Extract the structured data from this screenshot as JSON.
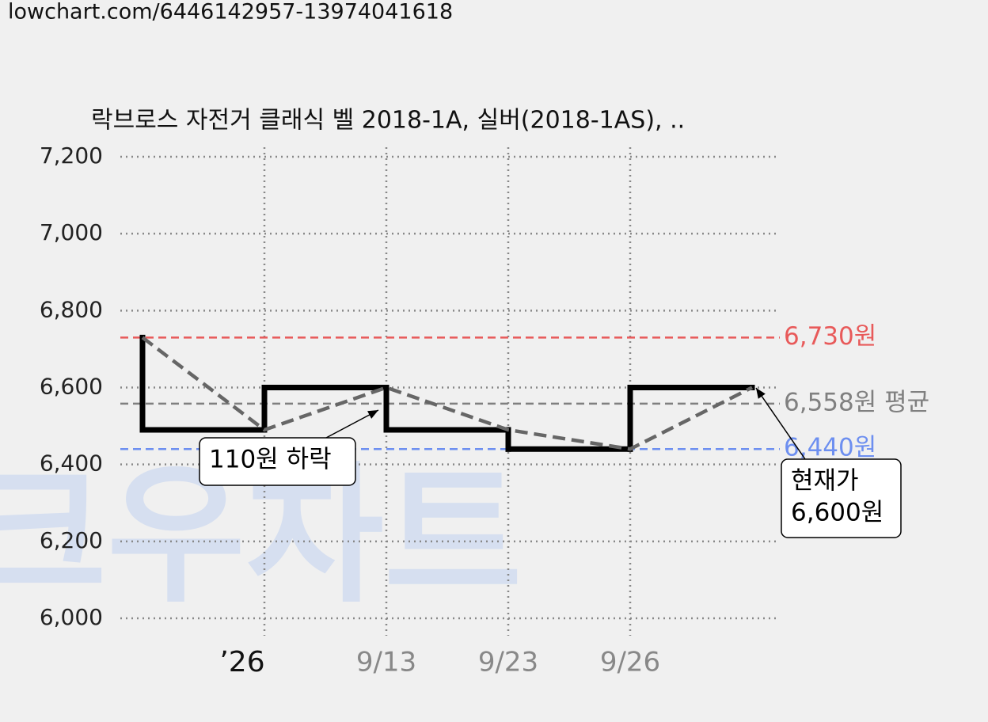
{
  "url": "lowchart.com/6446142957-13974041618",
  "watermark": "크우차트",
  "chart_data": {
    "type": "line",
    "title": "락브로스 자전거 클래식 벨 2018-1A, 실버(2018-1AS), ..",
    "categories": [
      null,
      "’26",
      "9/13",
      "9/23",
      "9/26",
      null
    ],
    "values": [
      6730,
      6490,
      6600,
      6490,
      6440,
      6600
    ],
    "ylim": [
      6000,
      7200
    ],
    "yticks": [
      {
        "value": 6000,
        "label": "6,000"
      },
      {
        "value": 6200,
        "label": "6,200"
      },
      {
        "value": 6400,
        "label": "6,400"
      },
      {
        "value": 6600,
        "label": "6,600"
      },
      {
        "value": 6800,
        "label": "6,800"
      },
      {
        "value": 7000,
        "label": "7,000"
      },
      {
        "value": 7200,
        "label": "7,200"
      }
    ],
    "grid": true,
    "reference_lines": [
      {
        "value": 6730,
        "label": "6,730원",
        "color": "#e85a5a"
      },
      {
        "value": 6558,
        "label": "6,558원 평균",
        "color": "#808080"
      },
      {
        "value": 6440,
        "label": "6,440원",
        "color": "#6d8ff0"
      }
    ],
    "annotations": [
      {
        "lines": [
          "110원 하락"
        ]
      },
      {
        "lines": [
          "현재가",
          "6,600원"
        ]
      }
    ]
  }
}
